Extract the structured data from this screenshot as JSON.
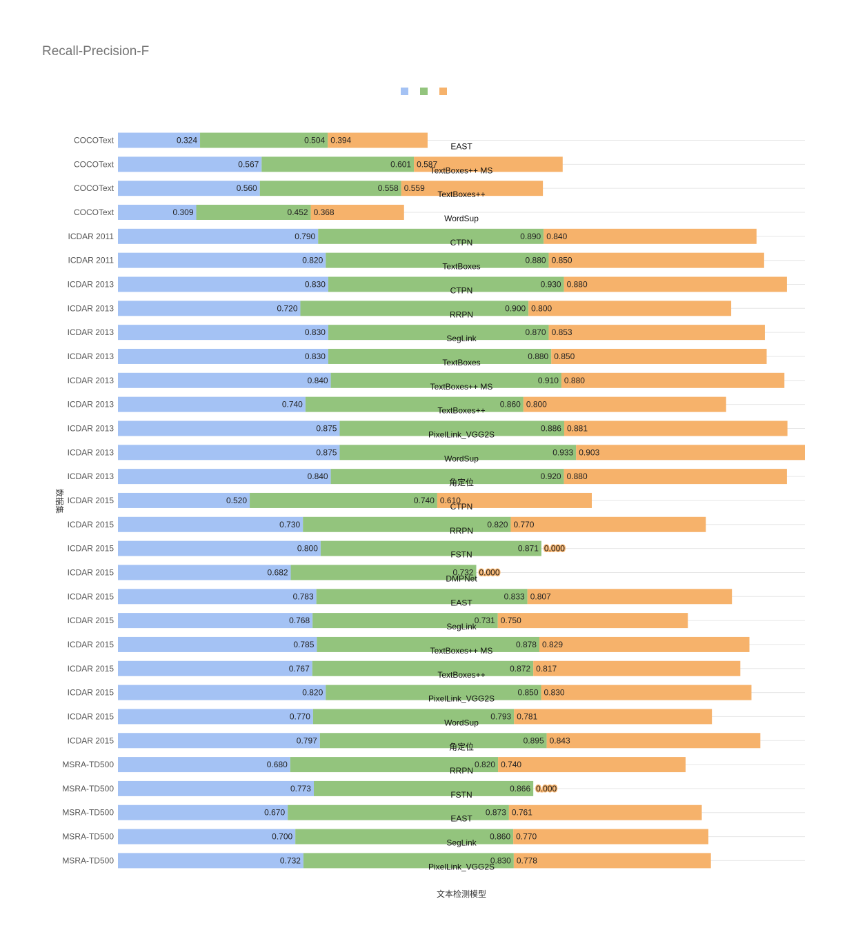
{
  "chart_data": {
    "type": "bar",
    "orientation": "horizontal",
    "stacked": true,
    "title": "Recall-Precision-F",
    "xlabel": "文本检测模型",
    "ylabel": "数据集",
    "legend_position": "top",
    "grid": true,
    "colors": [
      "#a4c2f4",
      "#93c47d",
      "#f6b26b"
    ],
    "series": [
      {
        "name": "",
        "color": "#a4c2f4",
        "values": [
          0.324,
          0.567,
          0.56,
          0.309,
          0.79,
          0.82,
          0.83,
          0.72,
          0.83,
          0.83,
          0.84,
          0.74,
          0.875,
          0.875,
          0.84,
          0.52,
          0.73,
          0.8,
          0.682,
          0.783,
          0.768,
          0.785,
          0.767,
          0.82,
          0.77,
          0.797,
          0.68,
          0.773,
          0.67,
          0.7,
          0.732
        ]
      },
      {
        "name": "",
        "color": "#93c47d",
        "values": [
          0.504,
          0.601,
          0.558,
          0.452,
          0.89,
          0.88,
          0.93,
          0.9,
          0.87,
          0.88,
          0.91,
          0.86,
          0.886,
          0.933,
          0.92,
          0.74,
          0.82,
          0.871,
          0.732,
          0.833,
          0.731,
          0.878,
          0.872,
          0.85,
          0.793,
          0.895,
          0.82,
          0.866,
          0.873,
          0.86,
          0.83
        ]
      },
      {
        "name": "",
        "color": "#f6b26b",
        "values": [
          0.394,
          0.587,
          0.559,
          0.368,
          0.84,
          0.85,
          0.88,
          0.8,
          0.853,
          0.85,
          0.88,
          0.8,
          0.881,
          0.903,
          0.88,
          0.61,
          0.77,
          0.0,
          0.0,
          0.807,
          0.75,
          0.829,
          0.817,
          0.83,
          0.781,
          0.843,
          0.74,
          0.0,
          0.761,
          0.77,
          0.778
        ]
      }
    ],
    "series_labels": [
      [
        "0.324",
        "0.567",
        "0.560",
        "0.309",
        "0.790",
        "0.820",
        "0.830",
        "0.720",
        "0.830",
        "0.830",
        "0.840",
        "0.740",
        "0.875",
        "0.875",
        "0.840",
        "0.520",
        "0.730",
        "0.800",
        "0.682",
        "0.783",
        "0.768",
        "0.785",
        "0.767",
        "0.820",
        "0.770",
        "0.797",
        "0.680",
        "0.773",
        "0.670",
        "0.700",
        "0.732"
      ],
      [
        "0.504",
        "0.601",
        "0.558",
        "0.452",
        "0.890",
        "0.880",
        "0.930",
        "0.900",
        "0.870",
        "0.880",
        "0.910",
        "0.860",
        "0.886",
        "0.933",
        "0.920",
        "0.740",
        "0.820",
        "0.871",
        "0.732",
        "0.833",
        "0.731",
        "0.878",
        "0.872",
        "0.850",
        "0.793",
        "0.895",
        "0.820",
        "0.866",
        "0.873",
        "0.860",
        "0.830"
      ],
      [
        "0.394",
        "0.587",
        "0.559",
        "0.368",
        "0.840",
        "0.850",
        "0.880",
        "0.800",
        "0.853",
        "0.850",
        "0.880",
        "0.800",
        "0.881",
        "0.903",
        "0.880",
        "0.610",
        "0.770",
        "0.000",
        "0.000",
        "0.807",
        "0.750",
        "0.829",
        "0.817",
        "0.830",
        "0.781",
        "0.843",
        "0.740",
        "0.000",
        "0.761",
        "0.770",
        "0.778"
      ]
    ],
    "categories": [
      "COCOText",
      "COCOText",
      "COCOText",
      "COCOText",
      "ICDAR 2011",
      "ICDAR 2011",
      "ICDAR 2013",
      "ICDAR 2013",
      "ICDAR 2013",
      "ICDAR 2013",
      "ICDAR 2013",
      "ICDAR 2013",
      "ICDAR 2013",
      "ICDAR 2013",
      "ICDAR 2013",
      "ICDAR 2015",
      "ICDAR 2015",
      "ICDAR 2015",
      "ICDAR 2015",
      "ICDAR 2015",
      "ICDAR 2015",
      "ICDAR 2015",
      "ICDAR 2015",
      "ICDAR 2015",
      "ICDAR 2015",
      "ICDAR 2015",
      "MSRA-TD500",
      "MSRA-TD500",
      "MSRA-TD500",
      "MSRA-TD500",
      "MSRA-TD500"
    ],
    "models": [
      "EAST",
      "TextBoxes++ MS",
      "TextBoxes++",
      "WordSup",
      "CTPN",
      "TextBoxes",
      "CTPN",
      "RRPN",
      "SegLink",
      "TextBoxes",
      "TextBoxes++ MS",
      "TextBoxes++",
      "PixelLink_VGG2S",
      "WordSup",
      "角定位",
      "CTPN",
      "RRPN",
      "FSTN",
      "DMPNet",
      "EAST",
      "SegLink",
      "TextBoxes++ MS",
      "TextBoxes++",
      "PixelLink_VGG2S",
      "WordSup",
      "角定位",
      "RRPN",
      "FSTN",
      "EAST",
      "SegLink",
      "PixelLink_VGG2S"
    ],
    "xlim": [
      0,
      2.711
    ]
  }
}
